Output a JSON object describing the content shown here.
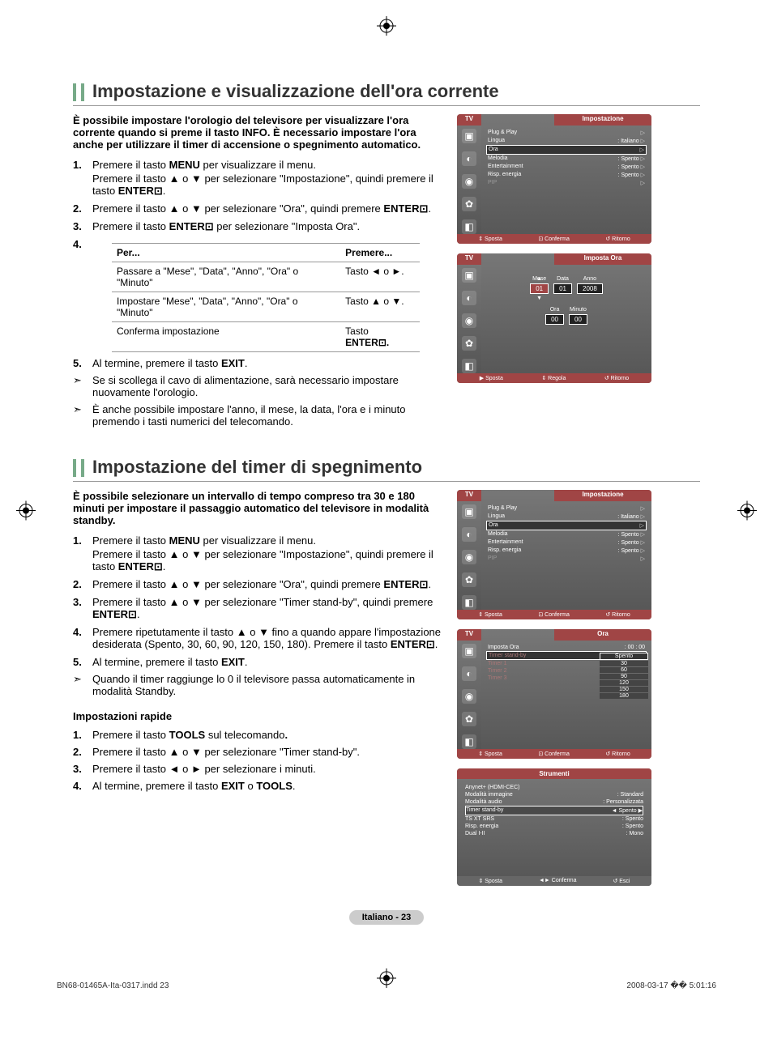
{
  "section1": {
    "title": "Impostazione e visualizzazione dell'ora corrente",
    "intro": "È possibile impostare l'orologio del televisore per visualizzare l'ora corrente quando si preme il tasto INFO. È necessario impostare l'ora anche per utilizzare il timer di accensione o spegnimento automatico.",
    "step1a": "Premere il tasto ",
    "step1b": " per visualizzare il menu.",
    "step1c": "Premere il tasto ▲ o ▼ per selezionare \"Impostazione\", quindi premere il tasto ",
    "step2": "Premere il tasto ▲ o ▼ per selezionare \"Ora\", quindi premere ",
    "step3a": "Premere il tasto ",
    "step3b": " per selezionare \"Imposta Ora\".",
    "tableNum": "4.",
    "th1": "Per...",
    "th2": "Premere...",
    "r1c1": "Passare a \"Mese\", \"Data\", \"Anno\", \"Ora\" o \"Minuto\"",
    "r1c2": "Tasto ◄ o ►.",
    "r2c1": "Impostare \"Mese\", \"Data\", \"Anno\", \"Ora\" o \"Minuto\"",
    "r2c2": "Tasto ▲ o ▼.",
    "r3c1": "Conferma impostazione",
    "r3c2a": "Tasto ",
    "step5a": "Al termine, premere il tasto ",
    "note1": "Se si scollega il cavo di alimentazione, sarà necessario impostare nuovamente l'orologio.",
    "note2": "È anche possibile impostare l'anno, il mese, la data, l'ora e i minuto premendo i tasti numerici del telecomando."
  },
  "section2": {
    "title": "Impostazione del timer di spegnimento",
    "intro": "È possibile selezionare un intervallo di tempo compreso tra 30 e 180 minuti per impostare il passaggio automatico del televisore in modalità  standby.",
    "step1a": "Premere il tasto ",
    "step1b": " per visualizzare il menu.",
    "step1c": "Premere il tasto ▲ o ▼ per selezionare \"Impostazione\", quindi premere il tasto ",
    "step2": "Premere il tasto ▲ o ▼ per selezionare \"Ora\", quindi premere ",
    "step3": "Premere il tasto ▲ o ▼ per selezionare \"Timer stand-by\", quindi premere ",
    "step4a": "Premere ripetutamente il tasto ▲ o ▼ fino a quando appare l'impostazione desiderata (Spento, 30, 60, 90, 120, 150, 180). Premere il tasto ",
    "step5a": "Al termine, premere il tasto ",
    "note1": "Quando il timer raggiunge lo 0 il televisore passa automaticamente in modalità Standby.",
    "quickTitle": "Impostazioni rapide",
    "q1a": "Premere il tasto ",
    "q1b": " sul telecomando",
    "q2": "Premere il tasto ▲ o ▼ per selezionare \"Timer stand-by\".",
    "q3": "Premere il tasto ◄ o ► per selezionare i minuti.",
    "q4a": "Al termine, premere il tasto ",
    "q4b": " o "
  },
  "labels": {
    "MENU": "MENU",
    "ENTER": "ENTER⊡",
    "EXIT": "EXIT",
    "TOOLS": "TOOLS"
  },
  "tv1": {
    "tab": "TV",
    "title": "Impostazione",
    "r1": "Plug & Play",
    "r2": "Lingua",
    "r2v": ": Italiano",
    "r3": "Ora",
    "r4": "Melodia",
    "r4v": ": Spento",
    "r5": "Entertainment",
    "r5v": ": Spento",
    "r6": "Risp. energia",
    "r6v": ": Spento",
    "r7": "PIP",
    "f1": "⇕ Sposta",
    "f2": "⊡ Conferma",
    "f3": "↺ Ritorno"
  },
  "tv2": {
    "tab": "TV",
    "title": "Imposta Ora",
    "mese": "Mese",
    "data": "Data",
    "anno": "Anno",
    "ora": "Ora",
    "minuto": "Minuto",
    "meseV": "01",
    "dataV": "01",
    "annoV": "2008",
    "oraV": "00",
    "minV": "00",
    "f1": "▶ Sposta",
    "f2": "⇕ Regola",
    "f3": "↺ Ritorno"
  },
  "tv3": {
    "tab": "TV",
    "title": "Ora",
    "r1": "Imposta Ora",
    "r1v": ": 00 : 00",
    "r2": "Timer stand-by",
    "r3": "Timer 1",
    "r4": "Timer 2",
    "r5": "Timer 3",
    "opts": [
      "Spento",
      "30",
      "60",
      "90",
      "120",
      "150",
      "180"
    ],
    "f1": "⇕ Sposta",
    "f2": "⊡ Conferma",
    "f3": "↺ Ritorno"
  },
  "stru": {
    "title": "Strumenti",
    "r1": "Anynet+ (HDMI-CEC)",
    "r2": "Modalità immagine",
    "r2v": ": Standard",
    "r3": "Modalità audio",
    "r3v": ": Personalizzata",
    "r4": "Timer stand-by",
    "r4v": "◄ Spento    ▶",
    "r5": "TS XT SRS",
    "r5v": ": Spento",
    "r6": "Risp. energia",
    "r6v": ": Spento",
    "r7": "Dual I-II",
    "r7v": ": Mono",
    "f1": "⇕ Sposta",
    "f2": "◄► Conferma",
    "f3": "↺ Esci"
  },
  "pageLabel": "Italiano - 23",
  "footer": {
    "file": "BN68-01465A-Ita-0317.indd   23",
    "date": "2008-03-17   �� 5:01:16"
  }
}
